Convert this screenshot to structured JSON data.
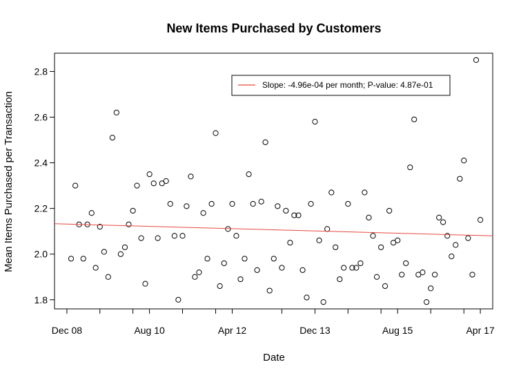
{
  "chart_data": {
    "type": "scatter",
    "title": "New Items Purchased by Customers",
    "xlabel": "Date",
    "ylabel": "Mean Items Purchased per Transaction",
    "xlim": [
      "2008-09-01",
      "2017-07-01"
    ],
    "ylim": [
      1.76,
      2.88
    ],
    "x_ticks": [
      {
        "date": "2008-12-01",
        "label": "Dec 08"
      },
      {
        "date": "2009-08-01",
        "label": ""
      },
      {
        "date": "2010-04-01",
        "label": ""
      },
      {
        "date": "2010-08-01",
        "label": "Aug 10"
      },
      {
        "date": "2011-04-01",
        "label": ""
      },
      {
        "date": "2011-12-01",
        "label": ""
      },
      {
        "date": "2012-04-01",
        "label": "Apr 12"
      },
      {
        "date": "2013-04-01",
        "label": ""
      },
      {
        "date": "2013-12-01",
        "label": "Dec 13"
      },
      {
        "date": "2014-08-01",
        "label": ""
      },
      {
        "date": "2015-04-01",
        "label": ""
      },
      {
        "date": "2015-08-01",
        "label": "Aug 15"
      },
      {
        "date": "2016-04-01",
        "label": ""
      },
      {
        "date": "2016-12-01",
        "label": ""
      },
      {
        "date": "2017-04-01",
        "label": "Apr 17"
      }
    ],
    "y_ticks": [
      1.8,
      2.0,
      2.2,
      2.4,
      2.6,
      2.8
    ],
    "y_tick_labels": [
      "1.8",
      "2.0",
      "2.2",
      "2.4",
      "2.6",
      "2.8"
    ],
    "grid": false,
    "legend": {
      "position": "top-right",
      "text": "Slope: -4.96e-04 per month; P-value: 4.87e-01",
      "color": "#e8473f"
    },
    "trend_line": {
      "start": [
        "2008-09-01",
        2.133
      ],
      "end": [
        "2017-07-01",
        2.08
      ],
      "color": "#e8473f"
    },
    "points": [
      [
        "2009-01-01",
        1.98
      ],
      [
        "2009-02-01",
        2.3
      ],
      [
        "2009-03-01",
        2.13
      ],
      [
        "2009-04-01",
        1.98
      ],
      [
        "2009-05-01",
        2.13
      ],
      [
        "2009-06-01",
        2.18
      ],
      [
        "2009-07-01",
        1.94
      ],
      [
        "2009-08-01",
        2.12
      ],
      [
        "2009-09-01",
        2.01
      ],
      [
        "2009-10-01",
        1.9
      ],
      [
        "2009-11-01",
        2.51
      ],
      [
        "2009-12-01",
        2.62
      ],
      [
        "2010-01-01",
        2.0
      ],
      [
        "2010-02-01",
        2.03
      ],
      [
        "2010-03-01",
        2.13
      ],
      [
        "2010-04-01",
        2.19
      ],
      [
        "2010-05-01",
        2.3
      ],
      [
        "2010-06-01",
        2.07
      ],
      [
        "2010-07-01",
        1.87
      ],
      [
        "2010-08-01",
        2.35
      ],
      [
        "2010-09-01",
        2.31
      ],
      [
        "2010-10-01",
        2.07
      ],
      [
        "2010-11-01",
        2.31
      ],
      [
        "2010-12-01",
        2.32
      ],
      [
        "2011-01-01",
        2.22
      ],
      [
        "2011-02-01",
        2.08
      ],
      [
        "2011-03-01",
        1.8
      ],
      [
        "2011-04-01",
        2.08
      ],
      [
        "2011-05-01",
        2.21
      ],
      [
        "2011-06-01",
        2.34
      ],
      [
        "2011-07-01",
        1.9
      ],
      [
        "2011-08-01",
        1.92
      ],
      [
        "2011-09-01",
        2.18
      ],
      [
        "2011-10-01",
        1.98
      ],
      [
        "2011-11-01",
        2.22
      ],
      [
        "2011-12-01",
        2.53
      ],
      [
        "2012-01-01",
        1.86
      ],
      [
        "2012-02-01",
        1.96
      ],
      [
        "2012-03-01",
        2.11
      ],
      [
        "2012-04-01",
        2.22
      ],
      [
        "2012-05-01",
        2.08
      ],
      [
        "2012-06-01",
        1.89
      ],
      [
        "2012-07-01",
        1.98
      ],
      [
        "2012-08-01",
        2.35
      ],
      [
        "2012-09-01",
        2.22
      ],
      [
        "2012-10-01",
        1.93
      ],
      [
        "2012-11-01",
        2.23
      ],
      [
        "2012-12-01",
        2.49
      ],
      [
        "2013-01-01",
        1.84
      ],
      [
        "2013-02-01",
        1.98
      ],
      [
        "2013-03-01",
        2.21
      ],
      [
        "2013-04-01",
        1.94
      ],
      [
        "2013-05-01",
        2.19
      ],
      [
        "2013-06-01",
        2.05
      ],
      [
        "2013-07-01",
        2.17
      ],
      [
        "2013-08-01",
        2.17
      ],
      [
        "2013-09-01",
        1.93
      ],
      [
        "2013-10-01",
        1.81
      ],
      [
        "2013-11-01",
        2.22
      ],
      [
        "2013-12-01",
        2.58
      ],
      [
        "2014-01-01",
        2.06
      ],
      [
        "2014-02-01",
        1.79
      ],
      [
        "2014-03-01",
        2.11
      ],
      [
        "2014-04-01",
        2.27
      ],
      [
        "2014-05-01",
        2.03
      ],
      [
        "2014-06-01",
        1.89
      ],
      [
        "2014-07-01",
        1.94
      ],
      [
        "2014-08-01",
        2.22
      ],
      [
        "2014-09-01",
        1.94
      ],
      [
        "2014-10-01",
        1.94
      ],
      [
        "2014-11-01",
        1.96
      ],
      [
        "2014-12-01",
        2.27
      ],
      [
        "2015-01-01",
        2.16
      ],
      [
        "2015-02-01",
        2.08
      ],
      [
        "2015-03-01",
        1.9
      ],
      [
        "2015-04-01",
        2.03
      ],
      [
        "2015-05-01",
        1.86
      ],
      [
        "2015-06-01",
        2.19
      ],
      [
        "2015-07-01",
        2.05
      ],
      [
        "2015-08-01",
        2.06
      ],
      [
        "2015-09-01",
        1.91
      ],
      [
        "2015-10-01",
        1.96
      ],
      [
        "2015-11-01",
        2.38
      ],
      [
        "2015-12-01",
        2.59
      ],
      [
        "2016-01-01",
        1.91
      ],
      [
        "2016-02-01",
        1.92
      ],
      [
        "2016-03-01",
        1.79
      ],
      [
        "2016-04-01",
        1.85
      ],
      [
        "2016-05-01",
        1.91
      ],
      [
        "2016-06-01",
        2.16
      ],
      [
        "2016-07-01",
        2.14
      ],
      [
        "2016-08-01",
        2.08
      ],
      [
        "2016-09-01",
        1.99
      ],
      [
        "2016-10-01",
        2.04
      ],
      [
        "2016-11-01",
        2.33
      ],
      [
        "2016-12-01",
        2.41
      ],
      [
        "2017-01-01",
        2.07
      ],
      [
        "2017-02-01",
        1.91
      ],
      [
        "2017-03-01",
        2.85
      ],
      [
        "2017-04-01",
        2.15
      ]
    ]
  }
}
